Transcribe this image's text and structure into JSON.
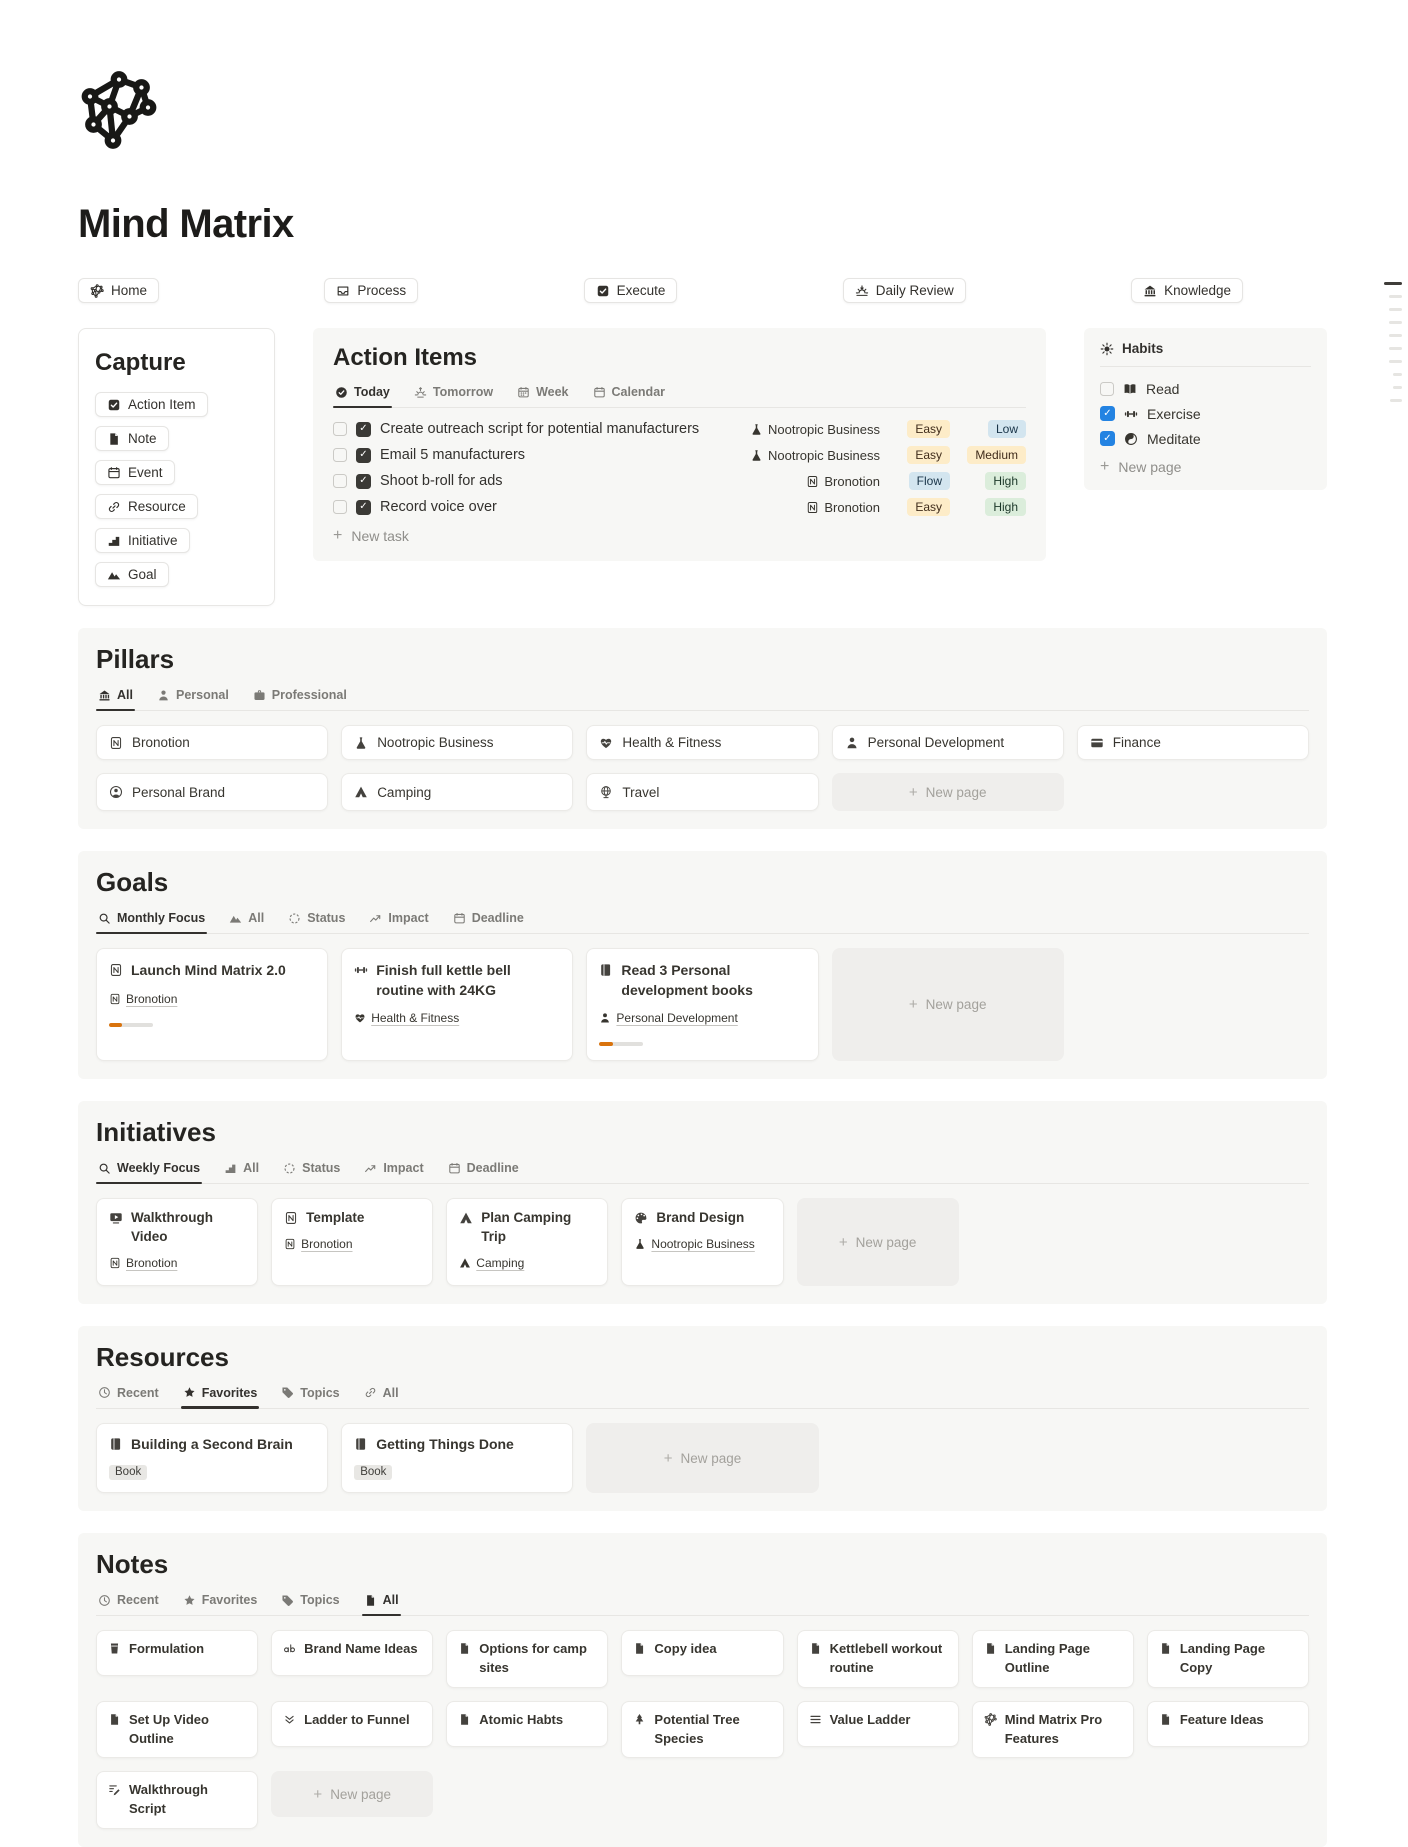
{
  "page": {
    "title": "Mind Matrix",
    "logo_icon": "network"
  },
  "nav": {
    "items": [
      {
        "label": "Home",
        "icon": "network"
      },
      {
        "label": "Process",
        "icon": "inbox"
      },
      {
        "label": "Execute",
        "icon": "checkbox-checked"
      },
      {
        "label": "Daily Review",
        "icon": "sunset"
      },
      {
        "label": "Knowledge",
        "icon": "bank"
      }
    ]
  },
  "capture": {
    "title": "Capture",
    "buttons": [
      {
        "label": "Action Item",
        "icon": "checkbox-checked"
      },
      {
        "label": "Note",
        "icon": "page"
      },
      {
        "label": "Event",
        "icon": "calendar"
      },
      {
        "label": "Resource",
        "icon": "link"
      },
      {
        "label": "Initiative",
        "icon": "stairs"
      },
      {
        "label": "Goal",
        "icon": "mountains"
      }
    ]
  },
  "action_items": {
    "title": "Action Items",
    "tabs": [
      {
        "label": "Today",
        "icon": "check-circle",
        "state": "selected"
      },
      {
        "label": "Tomorrow",
        "icon": "sunrise",
        "state": ""
      },
      {
        "label": "Week",
        "icon": "calendar-grid",
        "state": ""
      },
      {
        "label": "Calendar",
        "icon": "calendar",
        "state": ""
      }
    ],
    "tasks": [
      {
        "title": "Create outreach script for potential manufacturers",
        "project": "Nootropic Business",
        "project_icon": "flask",
        "effort": "Easy",
        "effort_bg": "#fdecc8",
        "effort_fg": "#402c1b",
        "impact": "Low",
        "impact_bg": "#d3e5ef",
        "impact_fg": "#183347"
      },
      {
        "title": "Email 5 manufacturers",
        "project": "Nootropic Business",
        "project_icon": "flask",
        "effort": "Easy",
        "effort_bg": "#fdecc8",
        "effort_fg": "#402c1b",
        "impact": "Medium",
        "impact_bg": "#fdecc8",
        "impact_fg": "#402c1b"
      },
      {
        "title": "Shoot b-roll for ads",
        "project": "Bronotion",
        "project_icon": "n-page",
        "effort": "Flow",
        "effort_bg": "#d3e5ef",
        "effort_fg": "#183347",
        "impact": "High",
        "impact_bg": "#dbeddb",
        "impact_fg": "#1c3829"
      },
      {
        "title": "Record voice over",
        "project": "Bronotion",
        "project_icon": "n-page",
        "effort": "Easy",
        "effort_bg": "#fdecc8",
        "effort_fg": "#402c1b",
        "impact": "High",
        "impact_bg": "#dbeddb",
        "impact_fg": "#1c3829"
      }
    ],
    "new_task_label": "New task"
  },
  "habits": {
    "title": "Habits",
    "icon": "sun",
    "items": [
      {
        "label": "Read",
        "icon": "book-open",
        "state": ""
      },
      {
        "label": "Exercise",
        "icon": "dumbbell",
        "state": "checked"
      },
      {
        "label": "Meditate",
        "icon": "yinyang",
        "state": "checked"
      }
    ],
    "new_page_label": "New page"
  },
  "pillars": {
    "title": "Pillars",
    "tabs": [
      {
        "label": "All",
        "icon": "bank",
        "state": "selected"
      },
      {
        "label": "Personal",
        "icon": "person",
        "state": ""
      },
      {
        "label": "Professional",
        "icon": "briefcase",
        "state": ""
      }
    ],
    "cards": [
      {
        "label": "Bronotion",
        "icon": "n-page"
      },
      {
        "label": "Nootropic Business",
        "icon": "flask"
      },
      {
        "label": "Health & Fitness",
        "icon": "heart-pulse"
      },
      {
        "label": "Personal Development",
        "icon": "person"
      },
      {
        "label": "Finance",
        "icon": "credit-card"
      },
      {
        "label": "Personal Brand",
        "icon": "person-circle"
      },
      {
        "label": "Camping",
        "icon": "tent"
      },
      {
        "label": "Travel",
        "icon": "globe"
      }
    ],
    "new_page_label": "New page"
  },
  "goals": {
    "title": "Goals",
    "tabs": [
      {
        "label": "Monthly Focus",
        "icon": "magnifier",
        "state": "selected"
      },
      {
        "label": "All",
        "icon": "mountains",
        "state": ""
      },
      {
        "label": "Status",
        "icon": "status-circle",
        "state": ""
      },
      {
        "label": "Impact",
        "icon": "chart",
        "state": ""
      },
      {
        "label": "Deadline",
        "icon": "calendar",
        "state": ""
      }
    ],
    "cards": [
      {
        "title": "Launch Mind Matrix 2.0",
        "icon": "n-page",
        "tag": "Bronotion",
        "tag_icon": "n-page",
        "progress": "30%"
      },
      {
        "title": "Finish full kettle bell routine with 24KG",
        "icon": "dumbbell",
        "tag": "Health & Fitness",
        "tag_icon": "heart-pulse"
      },
      {
        "title": "Read 3 Personal development books",
        "icon": "book",
        "tag": "Personal Development",
        "tag_icon": "person",
        "progress": "30%"
      }
    ],
    "new_page_label": "New page"
  },
  "initiatives": {
    "title": "Initiatives",
    "tabs": [
      {
        "label": "Weekly Focus",
        "icon": "magnifier",
        "state": "selected"
      },
      {
        "label": "All",
        "icon": "stairs",
        "state": ""
      },
      {
        "label": "Status",
        "icon": "status-circle",
        "state": ""
      },
      {
        "label": "Impact",
        "icon": "chart",
        "state": ""
      },
      {
        "label": "Deadline",
        "icon": "calendar",
        "state": ""
      }
    ],
    "cards": [
      {
        "title": "Walkthrough Video",
        "icon": "video",
        "tag": "Bronotion",
        "tag_icon": "n-page"
      },
      {
        "title": "Template",
        "icon": "n-page",
        "tag": "Bronotion",
        "tag_icon": "n-page"
      },
      {
        "title": "Plan Camping Trip",
        "icon": "tent",
        "tag": "Camping",
        "tag_icon": "tent"
      },
      {
        "title": "Brand Design",
        "icon": "palette",
        "tag": "Nootropic Business",
        "tag_icon": "flask"
      }
    ],
    "new_page_label": "New page"
  },
  "resources": {
    "title": "Resources",
    "tabs": [
      {
        "label": "Recent",
        "icon": "clock",
        "state": ""
      },
      {
        "label": "Favorites",
        "icon": "star",
        "state": "selected"
      },
      {
        "label": "Topics",
        "icon": "tag",
        "state": ""
      },
      {
        "label": "All",
        "icon": "link",
        "state": ""
      }
    ],
    "cards": [
      {
        "title": "Building a Second Brain",
        "icon": "book",
        "tag": "Book"
      },
      {
        "title": "Getting Things Done",
        "icon": "book",
        "tag": "Book"
      }
    ],
    "new_page_label": "New page"
  },
  "notes": {
    "title": "Notes",
    "tabs": [
      {
        "label": "Recent",
        "icon": "clock",
        "state": ""
      },
      {
        "label": "Favorites",
        "icon": "star",
        "state": ""
      },
      {
        "label": "Topics",
        "icon": "tag",
        "state": ""
      },
      {
        "label": "All",
        "icon": "page",
        "state": "selected"
      }
    ],
    "cards": [
      {
        "title": "Formulation",
        "icon": "cup"
      },
      {
        "title": "Brand Name Ideas",
        "icon": "typography"
      },
      {
        "title": "Options for camp sites",
        "icon": "page"
      },
      {
        "title": "Copy idea",
        "icon": "page"
      },
      {
        "title": "Kettlebell workout routine",
        "icon": "page"
      },
      {
        "title": "Landing Page Outline",
        "icon": "page"
      },
      {
        "title": "Landing Page Copy",
        "icon": "page"
      },
      {
        "title": "Set Up Video Outline",
        "icon": "page"
      },
      {
        "title": "Ladder to Funnel",
        "icon": "chevrons-down"
      },
      {
        "title": "Atomic Habts",
        "icon": "page"
      },
      {
        "title": "Potential Tree Species",
        "icon": "tree"
      },
      {
        "title": "Value Ladder",
        "icon": "list"
      },
      {
        "title": "Mind Matrix Pro Features",
        "icon": "network"
      },
      {
        "title": "Feature Ideas",
        "icon": "page"
      },
      {
        "title": "Walkthrough Script",
        "icon": "script"
      }
    ],
    "new_page_label": "New page"
  },
  "colors": {
    "habit_checkbox_blue": "#2383e2",
    "task_checkbox_dark": "#3b3a36",
    "progress_orange": "#d9730d",
    "tag_yellow_bg": "#fdecc8",
    "tag_blue_bg": "#d3e5ef",
    "tag_green_bg": "#dbeddb",
    "section_bg": "#f7f7f5"
  }
}
